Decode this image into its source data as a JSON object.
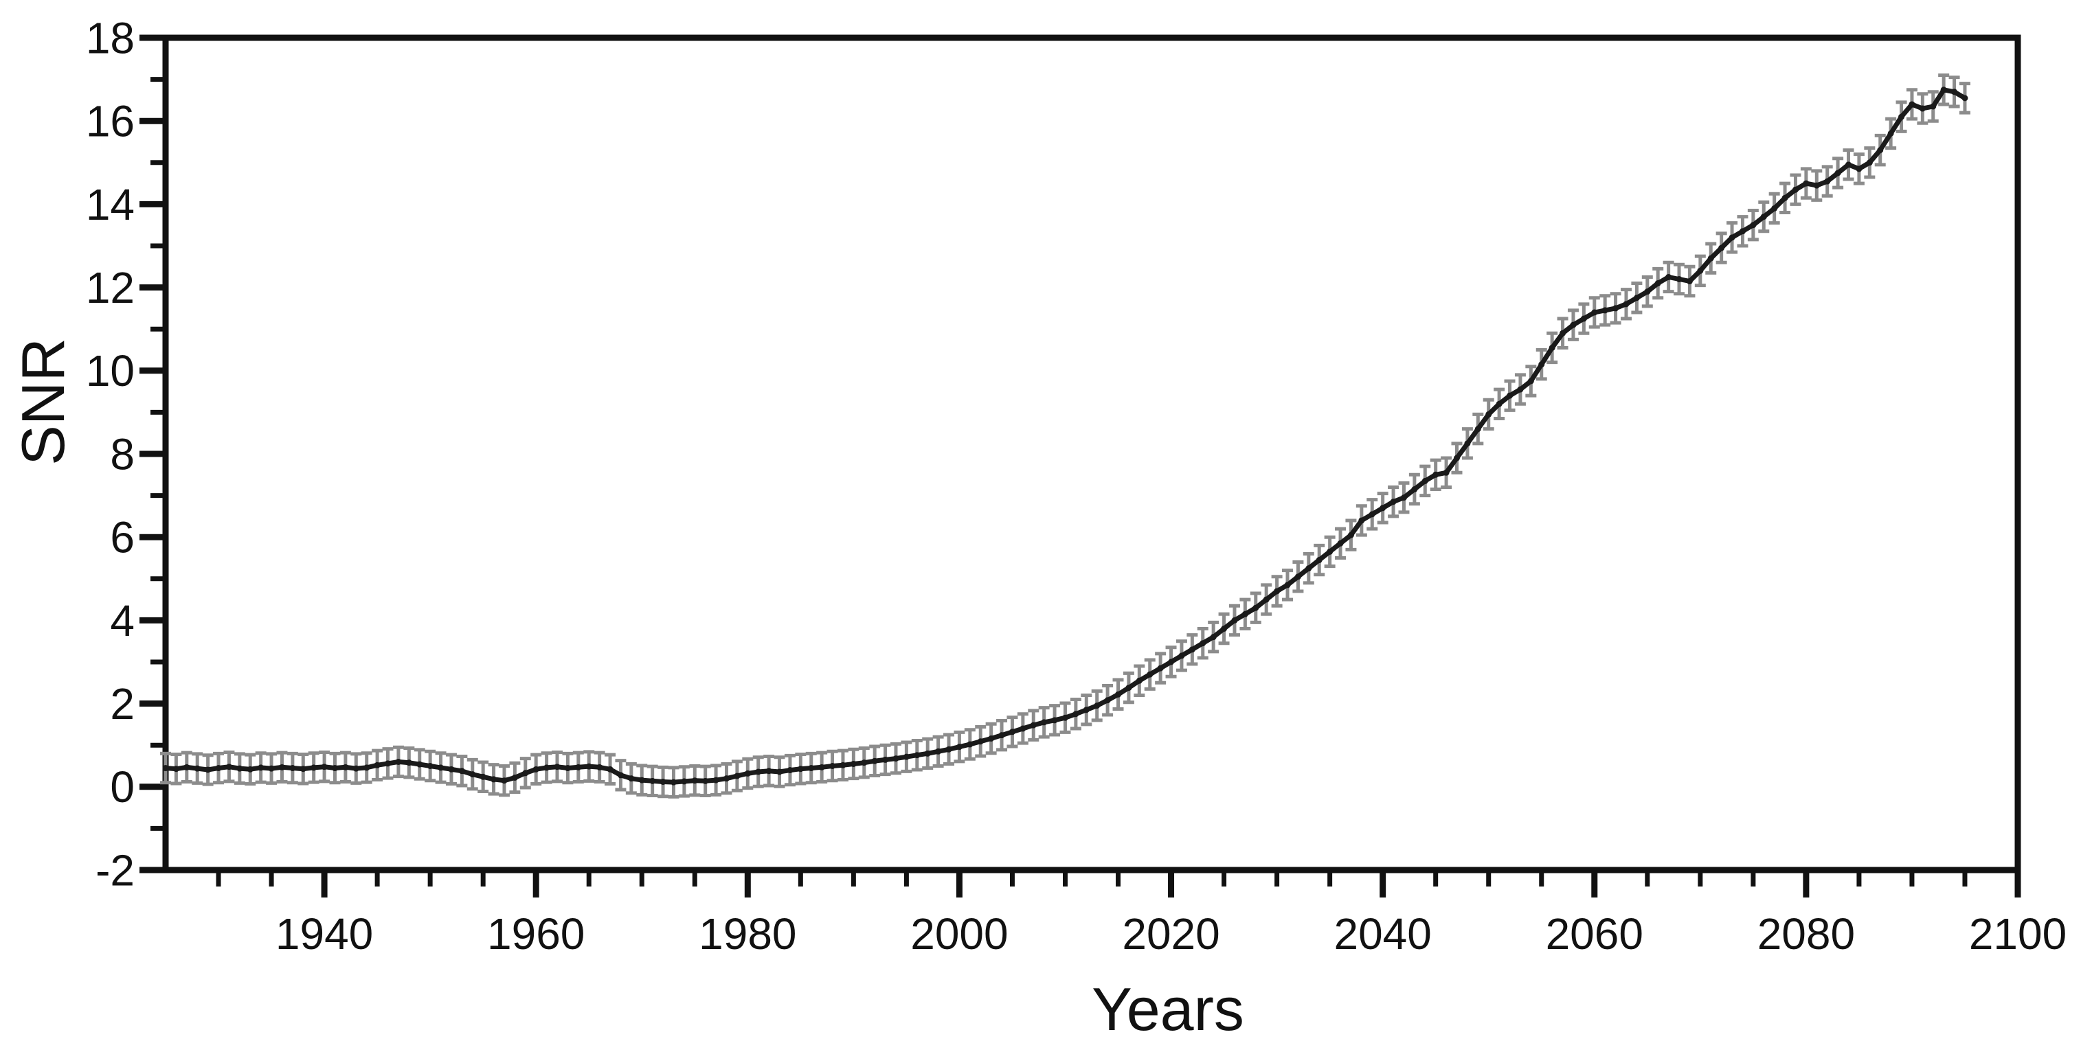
{
  "figure": {
    "description": "Line chart of signal-to-noise ratio (SNR) versus year with per-year error bars",
    "x_axis_label": "Years",
    "y_axis_label": "SNR",
    "background_color": "#ffffff",
    "line_color": "#1a1a1a",
    "marker_color": "#1a1a1a",
    "error_bar_color": "#8c8c8c",
    "text_color": "#111111"
  },
  "chart_data": {
    "type": "line",
    "title": "",
    "xlabel": "Years",
    "ylabel": "SNR",
    "xlim": [
      1925,
      2100
    ],
    "ylim": [
      -2,
      18
    ],
    "x_major_ticks": [
      1940,
      1960,
      1980,
      2000,
      2020,
      2040,
      2060,
      2080,
      2100
    ],
    "x_minor_tick_step": 5,
    "y_major_ticks": [
      -2,
      0,
      2,
      4,
      6,
      8,
      10,
      12,
      14,
      16,
      18
    ],
    "y_minor_tick_step": 1,
    "grid": false,
    "legend": null,
    "frame": "full-box",
    "tick_direction": "out",
    "error_bar_half_height": 0.35,
    "series": [
      {
        "name": "SNR",
        "x": [
          1925,
          1926,
          1927,
          1928,
          1929,
          1930,
          1931,
          1932,
          1933,
          1934,
          1935,
          1936,
          1937,
          1938,
          1939,
          1940,
          1941,
          1942,
          1943,
          1944,
          1945,
          1946,
          1947,
          1948,
          1949,
          1950,
          1951,
          1952,
          1953,
          1954,
          1955,
          1956,
          1957,
          1958,
          1959,
          1960,
          1961,
          1962,
          1963,
          1964,
          1965,
          1966,
          1967,
          1968,
          1969,
          1970,
          1971,
          1972,
          1973,
          1974,
          1975,
          1976,
          1977,
          1978,
          1979,
          1980,
          1981,
          1982,
          1983,
          1984,
          1985,
          1986,
          1987,
          1988,
          1989,
          1990,
          1991,
          1992,
          1993,
          1994,
          1995,
          1996,
          1997,
          1998,
          1999,
          2000,
          2001,
          2002,
          2003,
          2004,
          2005,
          2006,
          2007,
          2008,
          2009,
          2010,
          2011,
          2012,
          2013,
          2014,
          2015,
          2016,
          2017,
          2018,
          2019,
          2020,
          2021,
          2022,
          2023,
          2024,
          2025,
          2026,
          2027,
          2028,
          2029,
          2030,
          2031,
          2032,
          2033,
          2034,
          2035,
          2036,
          2037,
          2038,
          2039,
          2040,
          2041,
          2042,
          2043,
          2044,
          2045,
          2046,
          2047,
          2048,
          2049,
          2050,
          2051,
          2052,
          2053,
          2054,
          2055,
          2056,
          2057,
          2058,
          2059,
          2060,
          2061,
          2062,
          2063,
          2064,
          2065,
          2066,
          2067,
          2068,
          2069,
          2070,
          2071,
          2072,
          2073,
          2074,
          2075,
          2076,
          2077,
          2078,
          2079,
          2080,
          2081,
          2082,
          2083,
          2084,
          2085,
          2086,
          2087,
          2088,
          2089,
          2090,
          2091,
          2092,
          2093,
          2094,
          2095
        ],
        "y": [
          0.45,
          0.43,
          0.47,
          0.44,
          0.41,
          0.45,
          0.48,
          0.44,
          0.42,
          0.46,
          0.44,
          0.47,
          0.45,
          0.43,
          0.46,
          0.48,
          0.45,
          0.47,
          0.44,
          0.46,
          0.52,
          0.56,
          0.6,
          0.58,
          0.54,
          0.5,
          0.46,
          0.42,
          0.38,
          0.3,
          0.24,
          0.18,
          0.15,
          0.22,
          0.33,
          0.42,
          0.46,
          0.48,
          0.45,
          0.47,
          0.49,
          0.47,
          0.42,
          0.28,
          0.2,
          0.16,
          0.14,
          0.12,
          0.11,
          0.13,
          0.15,
          0.14,
          0.16,
          0.2,
          0.26,
          0.32,
          0.36,
          0.38,
          0.36,
          0.4,
          0.43,
          0.45,
          0.47,
          0.5,
          0.52,
          0.55,
          0.58,
          0.62,
          0.65,
          0.68,
          0.72,
          0.76,
          0.8,
          0.85,
          0.9,
          0.96,
          1.02,
          1.09,
          1.16,
          1.24,
          1.32,
          1.4,
          1.48,
          1.55,
          1.6,
          1.66,
          1.75,
          1.85,
          1.95,
          2.08,
          2.22,
          2.38,
          2.55,
          2.7,
          2.85,
          3.0,
          3.15,
          3.3,
          3.45,
          3.6,
          3.8,
          4.0,
          4.15,
          4.3,
          4.5,
          4.7,
          4.85,
          5.05,
          5.25,
          5.45,
          5.65,
          5.85,
          6.05,
          6.4,
          6.55,
          6.7,
          6.85,
          6.95,
          7.15,
          7.35,
          7.5,
          7.55,
          7.9,
          8.25,
          8.6,
          8.95,
          9.2,
          9.4,
          9.55,
          9.75,
          10.15,
          10.55,
          10.9,
          11.1,
          11.25,
          11.4,
          11.45,
          11.5,
          11.6,
          11.75,
          11.9,
          12.1,
          12.25,
          12.2,
          12.15,
          12.4,
          12.7,
          12.95,
          13.2,
          13.35,
          13.5,
          13.7,
          13.9,
          14.15,
          14.35,
          14.5,
          14.45,
          14.55,
          14.75,
          14.95,
          14.85,
          15.0,
          15.3,
          15.7,
          16.1,
          16.4,
          16.3,
          16.35,
          16.75,
          16.7,
          16.55
        ]
      }
    ]
  }
}
